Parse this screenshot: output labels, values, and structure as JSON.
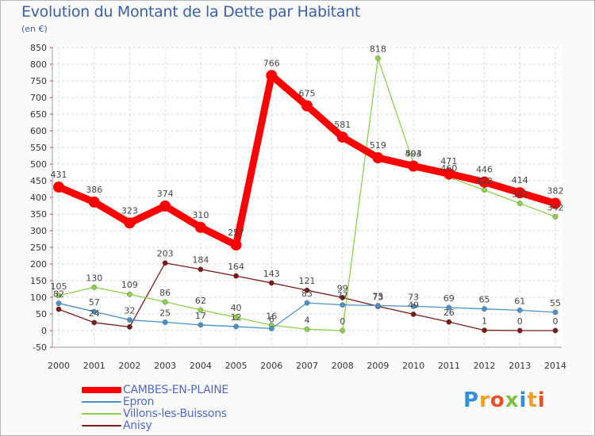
{
  "title": "Evolution du Montant de la Dette par Habitant",
  "subtitle": "(en €)",
  "logo": "Proxiti",
  "chart_data": {
    "type": "line",
    "title": "Evolution du Montant de la Dette par Habitant",
    "ylabel": "(en €)",
    "xlabel": "",
    "x": [
      "2000",
      "2001",
      "2002",
      "2003",
      "2004",
      "2005",
      "2006",
      "2007",
      "2008",
      "2009",
      "2010",
      "2011",
      "2012",
      "2013",
      "2014"
    ],
    "ylim": [
      -50,
      850
    ],
    "yticks": [
      -50,
      0,
      50,
      100,
      150,
      200,
      250,
      300,
      350,
      400,
      450,
      500,
      550,
      600,
      650,
      700,
      750,
      800,
      850
    ],
    "grid": true,
    "legend_position": "bottom-left",
    "series": [
      {
        "name": "CAMBES-EN-PLAINE",
        "color": "#ff0000",
        "values": [
          431,
          386,
          323,
          374,
          310,
          257,
          766,
          675,
          581,
          519,
          494,
          471,
          446,
          414,
          382
        ],
        "labels": [
          "431",
          "386",
          "323",
          "374",
          "310",
          "257",
          "766",
          "675",
          "581",
          "519",
          "494",
          "471",
          "446",
          "414",
          "382"
        ]
      },
      {
        "name": "Epron",
        "color": "#4a90c8",
        "values": [
          82,
          57,
          32,
          25,
          17,
          12,
          6,
          83,
          77,
          75,
          73,
          69,
          65,
          61,
          55
        ],
        "labels": [
          "82",
          "57",
          "32",
          "25",
          "17",
          "12",
          "6",
          "83",
          "77",
          "75",
          "73",
          "69",
          "65",
          "61",
          "55"
        ]
      },
      {
        "name": "Villons-les-Buissons",
        "color": "#8cd04a",
        "values": [
          105,
          130,
          109,
          86,
          62,
          40,
          16,
          4,
          0,
          818,
          503,
          460,
          422,
          382,
          342
        ],
        "labels": [
          "105",
          "130",
          "109",
          "86",
          "62",
          "40",
          "16",
          "4",
          "0",
          "818",
          "503",
          "460",
          "422",
          "382",
          "342"
        ]
      },
      {
        "name": "Anisy",
        "color": "#7a1a1a",
        "values": [
          64,
          24,
          11,
          203,
          184,
          164,
          143,
          121,
          99,
          73,
          49,
          26,
          1,
          0,
          0
        ],
        "labels": [
          "",
          "24",
          "",
          "203",
          "184",
          "164",
          "143",
          "121",
          "99",
          "73",
          "49",
          "26",
          "1",
          "0",
          "0"
        ]
      }
    ]
  },
  "legend": {
    "items": [
      {
        "label": "CAMBES-EN-PLAINE",
        "color": "#ff0000"
      },
      {
        "label": "Epron",
        "color": "#4a90c8"
      },
      {
        "label": "Villons-les-Buissons",
        "color": "#8cd04a"
      },
      {
        "label": "Anisy",
        "color": "#7a1a1a"
      }
    ]
  }
}
